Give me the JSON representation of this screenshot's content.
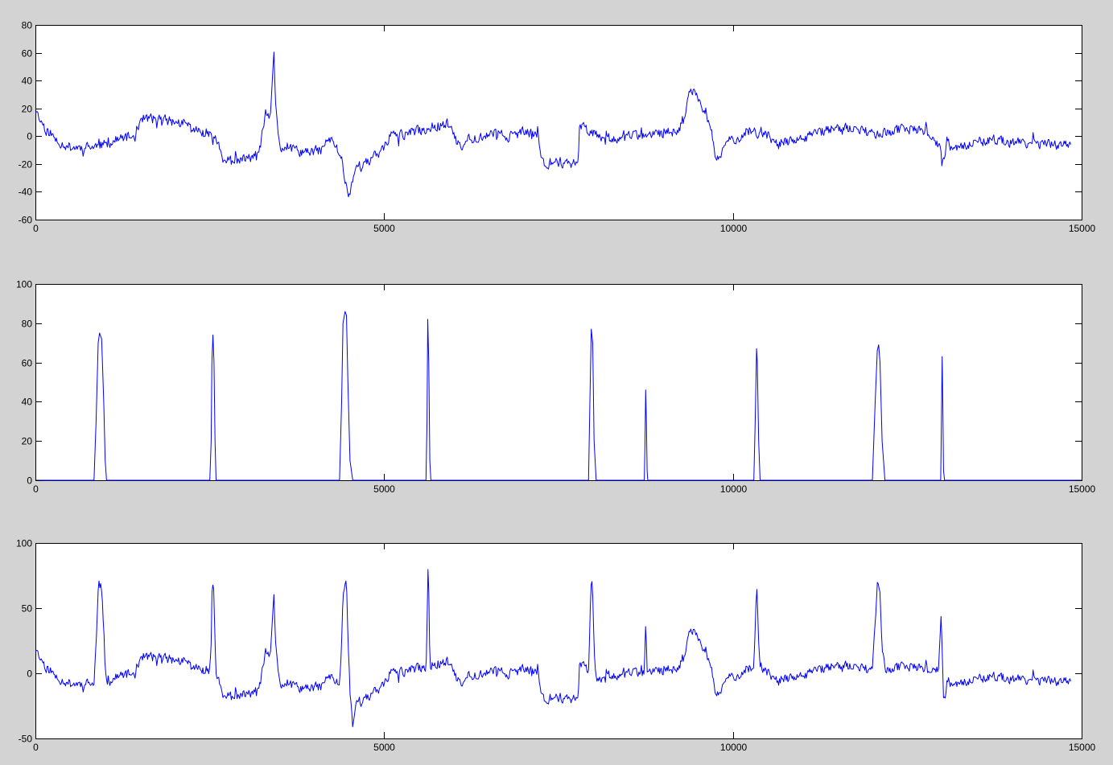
{
  "figure": {
    "background": "#d3d3d3",
    "axes_background": "#ffffff",
    "line_color": "#0000ff"
  },
  "chart_data": [
    {
      "type": "line",
      "title": "",
      "xlabel": "",
      "ylabel": "",
      "xlim": [
        0,
        15000
      ],
      "ylim": [
        -60,
        80
      ],
      "xticks": [
        0,
        5000,
        10000,
        15000
      ],
      "xtick_labels": [
        "0",
        "5000",
        "10000",
        "15000"
      ],
      "yticks": [
        -60,
        -40,
        -20,
        0,
        20,
        40,
        60,
        80
      ],
      "ytick_labels": [
        "-60",
        "-40",
        "-20",
        "0",
        "20",
        "40",
        "60",
        "80"
      ],
      "grid": false,
      "x_end": 14850,
      "noise_amplitude": 3.2,
      "noise_seed": 11,
      "series": [
        {
          "color": "#0000ff",
          "x": [
            0,
            150,
            300,
            500,
            800,
            1000,
            1200,
            1450,
            1500,
            1800,
            2000,
            2200,
            2250,
            2500,
            2550,
            2600,
            2700,
            2900,
            3100,
            3200,
            3300,
            3330,
            3370,
            3390,
            3420,
            3440,
            3500,
            3700,
            3900,
            4100,
            4200,
            4300,
            4400,
            4470,
            4500,
            4550,
            4600,
            4800,
            5000,
            5100,
            5200,
            5400,
            5600,
            5700,
            5800,
            5950,
            6000,
            6100,
            6200,
            6400,
            6600,
            6800,
            7000,
            7200,
            7250,
            7300,
            7500,
            7700,
            7780,
            7800,
            8000,
            8200,
            8500,
            8800,
            9000,
            9200,
            9300,
            9380,
            9450,
            9550,
            9600,
            9700,
            9760,
            9800,
            9900,
            10000,
            10100,
            10200,
            10300,
            10500,
            10600,
            10800,
            11000,
            11200,
            11400,
            11600,
            11800,
            12000,
            12200,
            12400,
            12600,
            12800,
            12950,
            13000,
            13050,
            13100,
            13200,
            13400,
            13700,
            14000,
            14300,
            14600,
            14850
          ],
          "y": [
            18,
            5,
            -3,
            -8,
            -8,
            -6,
            -2,
            0,
            13,
            12,
            10,
            8,
            4,
            3,
            0,
            -3,
            -18,
            -18,
            -15,
            -14,
            15,
            16,
            12,
            30,
            60,
            28,
            -8,
            -10,
            -12,
            -10,
            -2,
            -6,
            -18,
            -40,
            -42,
            -30,
            -22,
            -18,
            -8,
            2,
            0,
            3,
            5,
            7,
            8,
            9,
            0,
            -10,
            -2,
            0,
            2,
            0,
            3,
            1,
            -16,
            -20,
            -18,
            -20,
            -18,
            8,
            3,
            -2,
            0,
            0,
            2,
            5,
            10,
            32,
            35,
            22,
            18,
            0,
            -20,
            -15,
            -5,
            -2,
            0,
            4,
            4,
            0,
            -5,
            -4,
            -3,
            2,
            5,
            6,
            4,
            2,
            3,
            5,
            4,
            3,
            -6,
            -18,
            -10,
            -6,
            -8,
            -6,
            -3,
            -4,
            -5,
            -6,
            -6
          ]
        }
      ]
    },
    {
      "type": "line",
      "title": "",
      "xlabel": "",
      "ylabel": "",
      "xlim": [
        0,
        15000
      ],
      "ylim": [
        0,
        100
      ],
      "xticks": [
        0,
        5000,
        10000,
        15000
      ],
      "xtick_labels": [
        "0",
        "5000",
        "10000",
        "15000"
      ],
      "yticks": [
        0,
        20,
        40,
        60,
        80,
        100
      ],
      "ytick_labels": [
        "0",
        "20",
        "40",
        "60",
        "80",
        "100"
      ],
      "grid": false,
      "x_end": 15000,
      "noise_amplitude": 0,
      "series": [
        {
          "color": "#0000ff",
          "x": [
            0,
            840,
            870,
            900,
            920,
            950,
            980,
            1000,
            1020,
            1060,
            2500,
            2520,
            2530,
            2545,
            2560,
            2575,
            2590,
            2610,
            4360,
            4390,
            4410,
            4440,
            4460,
            4480,
            4510,
            4550,
            5600,
            5615,
            5625,
            5640,
            5655,
            5670,
            7930,
            7950,
            7970,
            7990,
            8010,
            8040,
            8730,
            8740,
            8750,
            8760,
            8770,
            8780,
            10300,
            10320,
            10340,
            10350,
            10370,
            10390,
            12000,
            12040,
            12070,
            12090,
            12110,
            12140,
            12180,
            12980,
            12990,
            13000,
            13010,
            13020,
            13035,
            15000
          ],
          "y": [
            0,
            0,
            30,
            70,
            75,
            72,
            40,
            10,
            0,
            0,
            0,
            20,
            60,
            74,
            60,
            20,
            0,
            0,
            0,
            40,
            80,
            86,
            84,
            50,
            10,
            0,
            0,
            30,
            82,
            60,
            10,
            0,
            0,
            40,
            77,
            70,
            20,
            0,
            0,
            20,
            46,
            30,
            5,
            0,
            0,
            30,
            67,
            60,
            20,
            0,
            0,
            40,
            66,
            69,
            60,
            20,
            0,
            0,
            30,
            63,
            40,
            5,
            0,
            0
          ]
        }
      ]
    },
    {
      "type": "line",
      "title": "",
      "xlabel": "",
      "ylabel": "",
      "xlim": [
        0,
        15000
      ],
      "ylim": [
        -50,
        100
      ],
      "xticks": [
        0,
        5000,
        10000,
        15000
      ],
      "xtick_labels": [
        "0",
        "5000",
        "10000",
        "15000"
      ],
      "yticks": [
        -50,
        0,
        50,
        100
      ],
      "ytick_labels": [
        "-50",
        "0",
        "50",
        "100"
      ],
      "grid": false,
      "x_end": 14850,
      "noise_amplitude": 3.2,
      "noise_seed": 11,
      "series": [
        {
          "color": "#0000ff",
          "x": [
            0,
            150,
            300,
            500,
            800,
            840,
            870,
            900,
            920,
            950,
            980,
            1000,
            1020,
            1060,
            1200,
            1450,
            1500,
            1800,
            2000,
            2200,
            2250,
            2500,
            2520,
            2530,
            2545,
            2560,
            2575,
            2590,
            2610,
            2700,
            2900,
            3100,
            3200,
            3300,
            3330,
            3370,
            3390,
            3420,
            3440,
            3500,
            3700,
            3900,
            4100,
            4200,
            4300,
            4360,
            4390,
            4410,
            4440,
            4460,
            4480,
            4510,
            4550,
            4600,
            4800,
            5000,
            5100,
            5200,
            5400,
            5600,
            5615,
            5625,
            5640,
            5655,
            5670,
            5700,
            5800,
            5950,
            6000,
            6100,
            6200,
            6400,
            6600,
            6800,
            7000,
            7200,
            7250,
            7300,
            7500,
            7700,
            7780,
            7800,
            7930,
            7950,
            7970,
            7990,
            8010,
            8040,
            8200,
            8500,
            8730,
            8740,
            8750,
            8760,
            8770,
            8780,
            9000,
            9200,
            9300,
            9380,
            9450,
            9550,
            9600,
            9700,
            9760,
            9800,
            9900,
            10000,
            10100,
            10200,
            10300,
            10320,
            10340,
            10350,
            10370,
            10390,
            10500,
            10600,
            10800,
            11000,
            11200,
            11400,
            11600,
            11800,
            12000,
            12040,
            12070,
            12090,
            12110,
            12140,
            12180,
            12200,
            12400,
            12600,
            12800,
            12950,
            12980,
            12990,
            13000,
            13010,
            13020,
            13035,
            13050,
            13100,
            13200,
            13400,
            13700,
            14000,
            14300,
            14600,
            14850
          ],
          "y": [
            18,
            5,
            -3,
            -8,
            -8,
            -8,
            22,
            63,
            68,
            65,
            32,
            2,
            -6,
            -6,
            -2,
            0,
            13,
            12,
            10,
            8,
            4,
            3,
            23,
            63,
            75,
            61,
            21,
            0,
            -3,
            -18,
            -18,
            -15,
            -14,
            15,
            16,
            12,
            30,
            60,
            28,
            -8,
            -10,
            -12,
            -10,
            -2,
            -6,
            -8,
            20,
            62,
            72,
            68,
            30,
            -12,
            -40,
            -22,
            -18,
            -8,
            2,
            0,
            3,
            5,
            35,
            85,
            63,
            13,
            3,
            7,
            8,
            9,
            0,
            -10,
            -2,
            0,
            2,
            0,
            3,
            1,
            -16,
            -20,
            -18,
            -20,
            -18,
            8,
            3,
            42,
            73,
            66,
            16,
            -4,
            -2,
            0,
            0,
            20,
            38,
            24,
            1,
            0,
            2,
            5,
            10,
            32,
            35,
            22,
            18,
            0,
            -20,
            -15,
            -5,
            -2,
            0,
            4,
            4,
            34,
            71,
            64,
            24,
            4,
            0,
            -5,
            -4,
            -3,
            2,
            5,
            6,
            4,
            2,
            42,
            68,
            71,
            62,
            22,
            2,
            3,
            5,
            4,
            3,
            4,
            33,
            52,
            18,
            0,
            -18,
            -14,
            -18,
            -6,
            -8,
            -6,
            -3,
            -4,
            -5,
            -6,
            -6
          ]
        }
      ]
    }
  ]
}
